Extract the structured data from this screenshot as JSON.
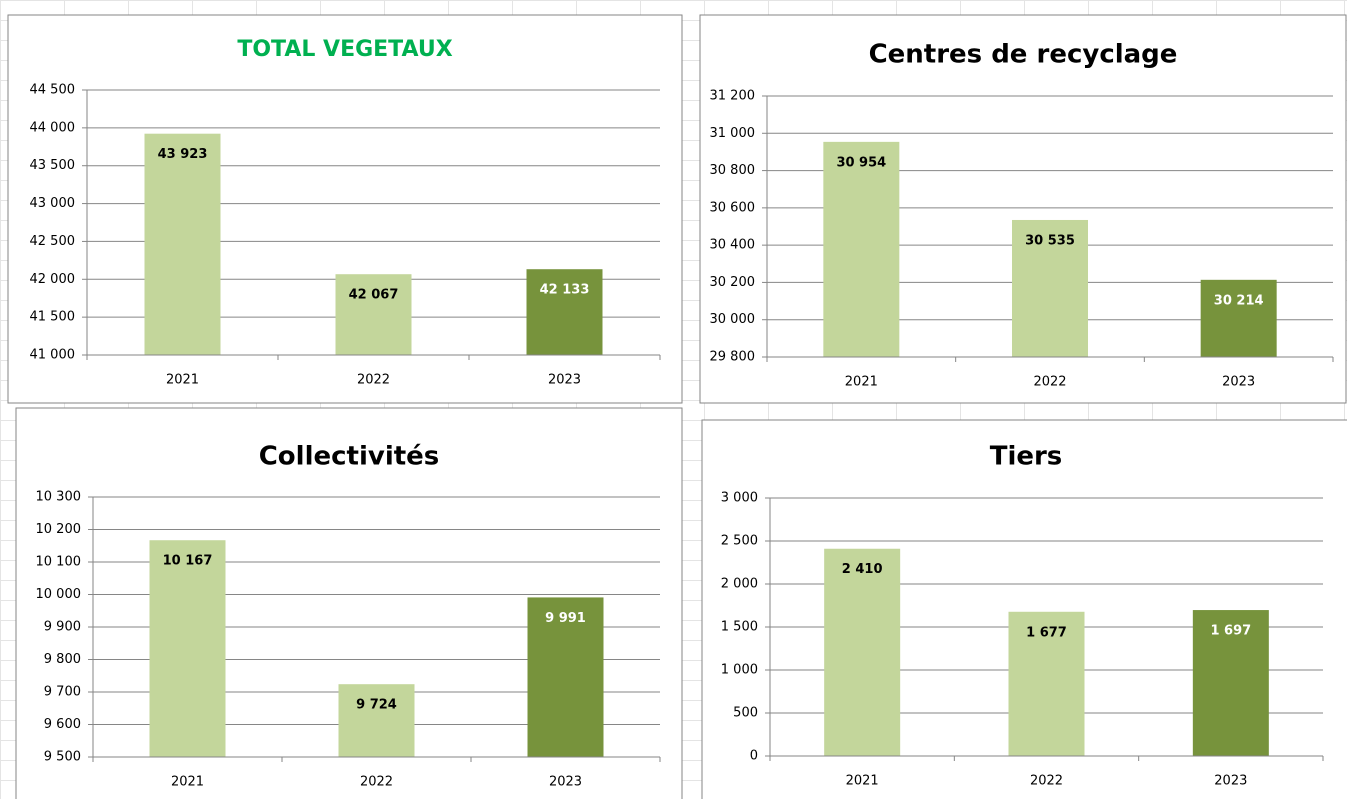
{
  "chart_data": [
    {
      "type": "bar",
      "title": "TOTAL VEGETAUX",
      "title_color": "#00b050",
      "categories": [
        "2021",
        "2022",
        "2023"
      ],
      "values": [
        43923,
        42067,
        42133
      ],
      "value_labels": [
        "43 923",
        "42 067",
        "42 133"
      ],
      "colors": [
        "#c3d69b",
        "#c3d69b",
        "#77933c"
      ],
      "label_colors": [
        "#000000",
        "#000000",
        "#ffffff"
      ],
      "ylim": [
        41000,
        44500
      ],
      "yticks": [
        {
          "value": 41000,
          "label": "41 000"
        },
        {
          "value": 41500,
          "label": "41 500"
        },
        {
          "value": 42000,
          "label": "42 000"
        },
        {
          "value": 42500,
          "label": "42 500"
        },
        {
          "value": 43000,
          "label": "43 000"
        },
        {
          "value": 43500,
          "label": "43 500"
        },
        {
          "value": 44000,
          "label": "44 000"
        },
        {
          "value": 44500,
          "label": "44 500"
        }
      ],
      "grid": true
    },
    {
      "type": "bar",
      "title": "Centres de recyclage",
      "title_color": "#000000",
      "categories": [
        "2021",
        "2022",
        "2023"
      ],
      "values": [
        30954,
        30535,
        30214
      ],
      "value_labels": [
        "30 954",
        "30 535",
        "30 214"
      ],
      "colors": [
        "#c3d69b",
        "#c3d69b",
        "#77933c"
      ],
      "label_colors": [
        "#000000",
        "#000000",
        "#ffffff"
      ],
      "ylim": [
        29800,
        31200
      ],
      "yticks": [
        {
          "value": 29800,
          "label": "29 800"
        },
        {
          "value": 30000,
          "label": "30 000"
        },
        {
          "value": 30200,
          "label": "30 200"
        },
        {
          "value": 30400,
          "label": "30 400"
        },
        {
          "value": 30600,
          "label": "30 600"
        },
        {
          "value": 30800,
          "label": "30 800"
        },
        {
          "value": 31000,
          "label": "31 000"
        },
        {
          "value": 31200,
          "label": "31 200"
        }
      ],
      "grid": true
    },
    {
      "type": "bar",
      "title": "Collectivités",
      "title_color": "#000000",
      "categories": [
        "2021",
        "2022",
        "2023"
      ],
      "values": [
        10167,
        9724,
        9991
      ],
      "value_labels": [
        "10 167",
        "9 724",
        "9 991"
      ],
      "colors": [
        "#c3d69b",
        "#c3d69b",
        "#77933c"
      ],
      "label_colors": [
        "#000000",
        "#000000",
        "#ffffff"
      ],
      "ylim": [
        9500,
        10300
      ],
      "yticks": [
        {
          "value": 9500,
          "label": "9 500"
        },
        {
          "value": 9600,
          "label": "9 600"
        },
        {
          "value": 9700,
          "label": "9 700"
        },
        {
          "value": 9800,
          "label": "9 800"
        },
        {
          "value": 9900,
          "label": "9 900"
        },
        {
          "value": 10000,
          "label": "10 000"
        },
        {
          "value": 10100,
          "label": "10 100"
        },
        {
          "value": 10200,
          "label": "10 200"
        },
        {
          "value": 10300,
          "label": "10 300"
        }
      ],
      "grid": true
    },
    {
      "type": "bar",
      "title": "Tiers",
      "title_color": "#000000",
      "categories": [
        "2021",
        "2022",
        "2023"
      ],
      "values": [
        2410,
        1677,
        1697
      ],
      "value_labels": [
        "2 410",
        "1 677",
        "1 697"
      ],
      "colors": [
        "#c3d69b",
        "#c3d69b",
        "#77933c"
      ],
      "label_colors": [
        "#000000",
        "#000000",
        "#ffffff"
      ],
      "ylim": [
        0,
        3000
      ],
      "yticks": [
        0,
        500,
        {
          "value": 1000,
          "label": "1 000"
        },
        {
          "value": 1500,
          "label": "1 500"
        },
        {
          "value": 2000,
          "label": "2 000"
        },
        {
          "value": 2500,
          "label": "2 500"
        },
        {
          "value": 3000,
          "label": "3 000"
        }
      ],
      "grid": true
    }
  ]
}
